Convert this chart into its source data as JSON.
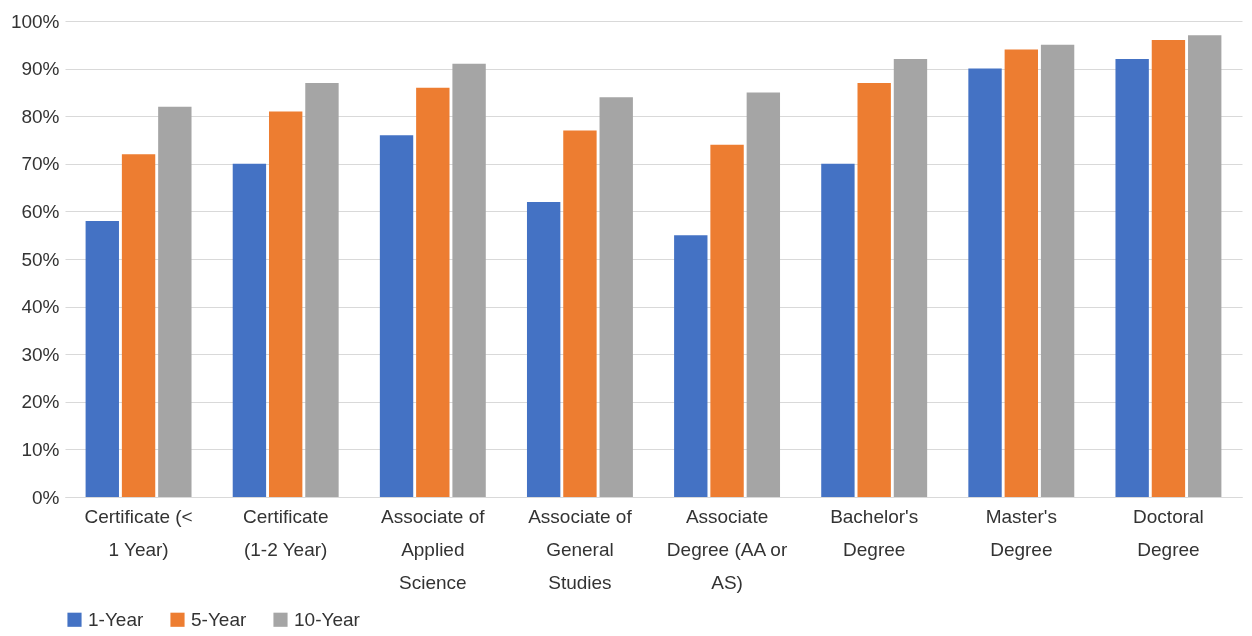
{
  "chart_data": {
    "type": "bar",
    "categories": [
      "Certificate (< 1 Year)",
      "Certificate (1-2 Year)",
      "Associate of Applied Science",
      "Associate of General Studies",
      "Associate Degree (AA or AS)",
      "Bachelor's Degree",
      "Master's Degree",
      "Doctoral Degree"
    ],
    "series": [
      {
        "name": "1-Year",
        "color": "#4472c4",
        "values": [
          58,
          70,
          76,
          62,
          55,
          70,
          90,
          92
        ]
      },
      {
        "name": "5-Year",
        "color": "#ed7d31",
        "values": [
          72,
          81,
          86,
          77,
          74,
          87,
          94,
          96
        ]
      },
      {
        "name": "10-Year",
        "color": "#a5a5a5",
        "values": [
          82,
          87,
          91,
          84,
          85,
          92,
          95,
          97
        ]
      }
    ],
    "ylim": [
      0,
      100
    ],
    "yticks": [
      {
        "value": 0,
        "label": "0%"
      },
      {
        "value": 10,
        "label": "10%"
      },
      {
        "value": 20,
        "label": "20%"
      },
      {
        "value": 30,
        "label": "30%"
      },
      {
        "value": 40,
        "label": "40%"
      },
      {
        "value": 50,
        "label": "50%"
      },
      {
        "value": 60,
        "label": "60%"
      },
      {
        "value": 70,
        "label": "70%"
      },
      {
        "value": 80,
        "label": "80%"
      },
      {
        "value": 90,
        "label": "90%"
      },
      {
        "value": 100,
        "label": "100%"
      }
    ],
    "grid": "y",
    "legend": "bottom"
  }
}
